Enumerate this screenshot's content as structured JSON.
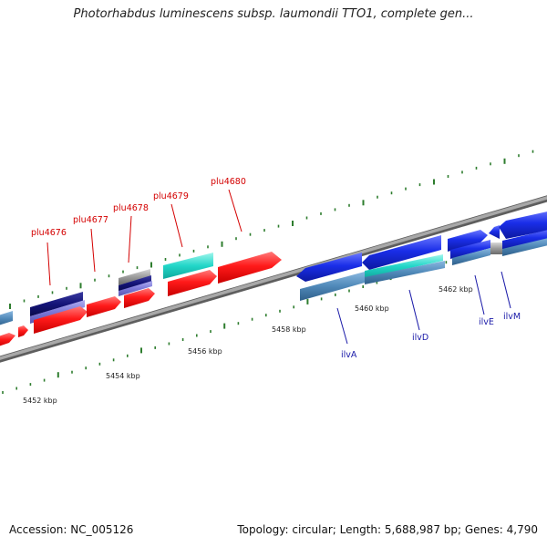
{
  "header": {
    "title": "Photorhabdus luminescens subsp. laumondii TTO1, complete gen..."
  },
  "footer": {
    "accession": "Accession: NC_005126",
    "stats": "Topology: circular; Length: 5,688,987 bp; Genes: 4,790"
  },
  "colors": {
    "backbone": "#8a8a8a",
    "tick": "#2e7d2e",
    "red_gene": "#ff2020",
    "blue_gene": "#1a2ee8",
    "navy_gene": "#141478",
    "steel_gene": "#4f88b8",
    "cyan_gene": "#22d6c8",
    "grey_gene": "#9a9a9a",
    "red_label": "#d40000",
    "blue_label": "#1a1aa8"
  },
  "tick_labels": [
    {
      "text": "5452 kbp"
    },
    {
      "text": "5454 kbp"
    },
    {
      "text": "5456 kbp"
    },
    {
      "text": "5458 kbp"
    },
    {
      "text": "5460 kbp"
    },
    {
      "text": "5462 kbp"
    }
  ],
  "gene_labels": [
    {
      "text": "plu4676",
      "color": "red"
    },
    {
      "text": "plu4677",
      "color": "red"
    },
    {
      "text": "plu4678",
      "color": "red"
    },
    {
      "text": "plu4679",
      "color": "red"
    },
    {
      "text": "plu4680",
      "color": "red"
    },
    {
      "text": "ilvA",
      "color": "blue"
    },
    {
      "text": "ilvD",
      "color": "blue"
    },
    {
      "text": "ilvE",
      "color": "blue"
    },
    {
      "text": "ilvM",
      "color": "blue"
    }
  ]
}
